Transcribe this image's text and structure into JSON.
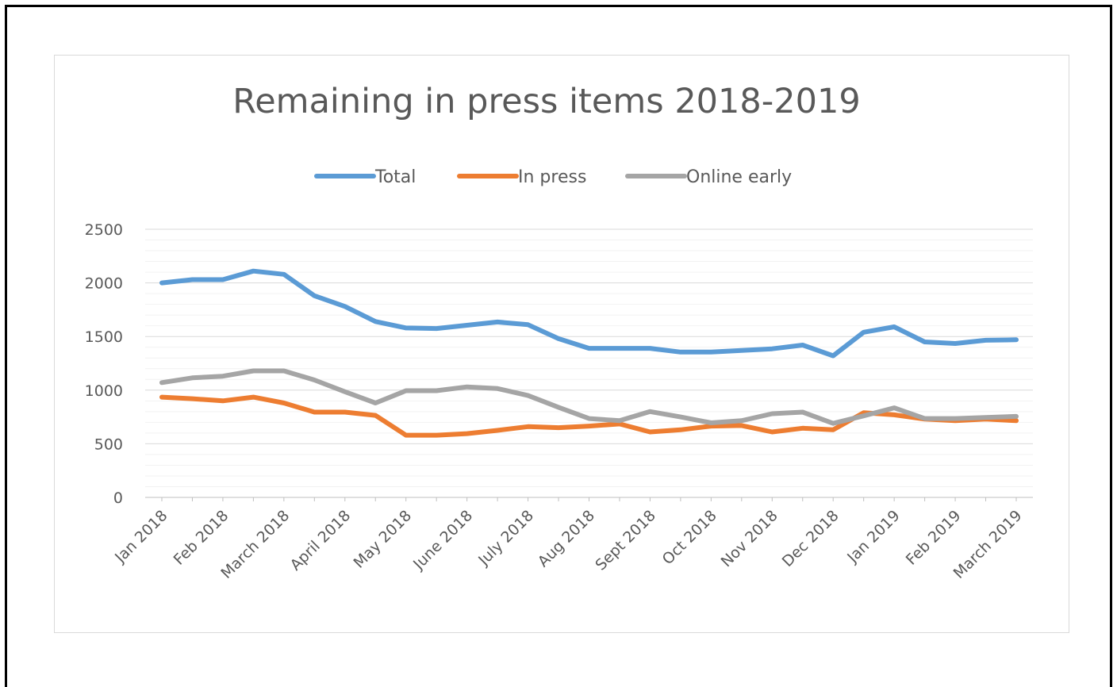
{
  "chart_data": {
    "type": "line",
    "title": "Remaining in press items 2018-2019",
    "xlabel": "",
    "ylabel": "",
    "ylim": [
      0,
      2500
    ],
    "yticks": [
      0,
      500,
      1000,
      1500,
      2000,
      2500
    ],
    "grid": true,
    "legend_position": "top",
    "x_tick_labels": [
      "Jan 2018",
      "Feb 2018",
      "March 2018",
      "April 2018",
      "May 2018",
      "June 2018",
      "July 2018",
      "Aug 2018",
      "Sept 2018",
      "Oct 2018",
      "Nov 2018",
      "Dec 2018",
      "Jan 2019",
      "Feb 2019",
      "March 2019"
    ],
    "num_points": 29,
    "series": [
      {
        "name": "Total",
        "color": "#5b9bd5",
        "values": [
          2000,
          2030,
          2030,
          2110,
          2080,
          1880,
          1780,
          1640,
          1580,
          1575,
          1605,
          1635,
          1610,
          1480,
          1390,
          1390,
          1390,
          1355,
          1355,
          1370,
          1385,
          1420,
          1320,
          1540,
          1590,
          1450,
          1435,
          1465,
          1470
        ]
      },
      {
        "name": "In press",
        "color": "#ed7d31",
        "values": [
          935,
          920,
          900,
          935,
          880,
          795,
          795,
          765,
          580,
          580,
          595,
          625,
          660,
          650,
          665,
          685,
          610,
          630,
          665,
          670,
          610,
          645,
          630,
          790,
          770,
          730,
          715,
          730,
          715
        ]
      },
      {
        "name": "Online early",
        "color": "#a5a5a5",
        "values": [
          1070,
          1115,
          1130,
          1180,
          1180,
          1095,
          985,
          880,
          995,
          995,
          1030,
          1015,
          950,
          840,
          735,
          715,
          800,
          750,
          695,
          715,
          780,
          795,
          690,
          760,
          835,
          735,
          735,
          745,
          755
        ]
      }
    ]
  }
}
